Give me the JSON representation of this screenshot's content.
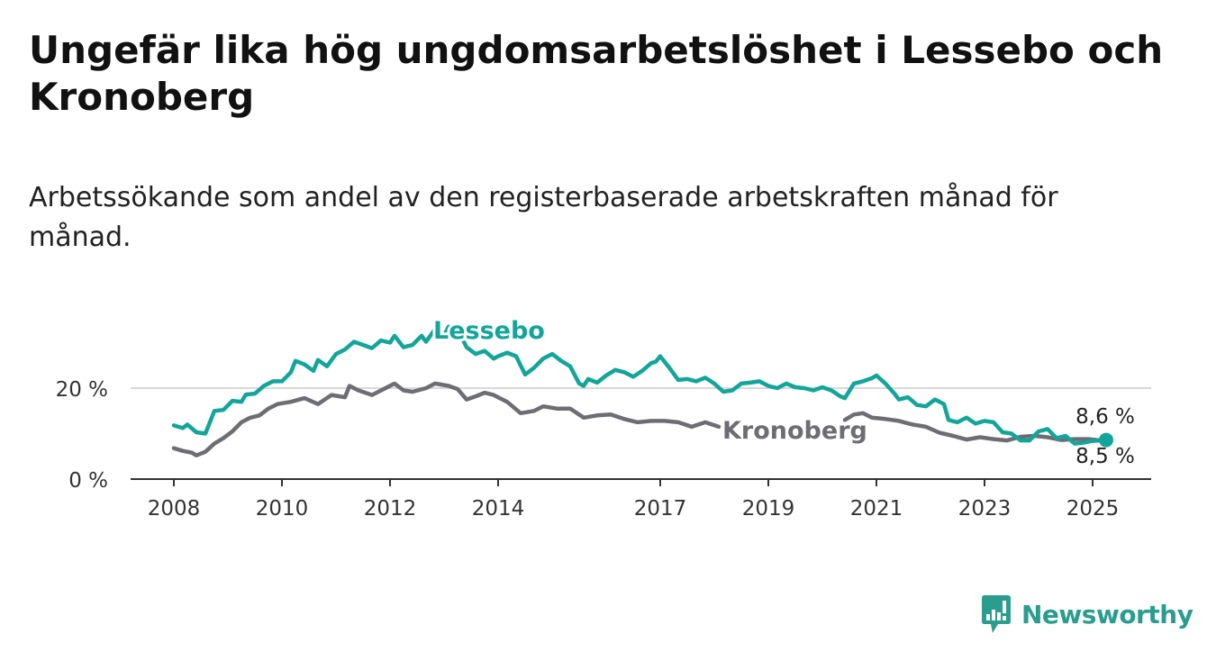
{
  "title": "Ungefär lika hög ungdomsarbetslöshet i Lessebo och Kronoberg",
  "subtitle": "Arbetssökande som andel av den registerbaserade arbetskraften månad för månad.",
  "brand": {
    "name": "Newsworthy",
    "icon": "newsworthy-logo-icon",
    "color": "#2a9d8f"
  },
  "chart_data": {
    "type": "line",
    "xlabel": "",
    "ylabel": "",
    "x_ticks": [
      "2008",
      "2010",
      "2012",
      "2014",
      "2017",
      "2019",
      "2021",
      "2023",
      "2025"
    ],
    "x_range": [
      "2008-01",
      "2025-04"
    ],
    "y_ticks": [
      "0 %",
      "20 %"
    ],
    "ylim": [
      0,
      40
    ],
    "grid": "horizontal",
    "end_labels": {
      "top": "8,6 %",
      "bottom": "8,5 %"
    },
    "series": [
      {
        "name": "Lessebo",
        "color": "#13a59a",
        "points": [
          [
            "2008-01",
            11.8
          ],
          [
            "2008-03",
            11.2
          ],
          [
            "2008-04",
            12.0
          ],
          [
            "2008-06",
            10.3
          ],
          [
            "2008-08",
            10.0
          ],
          [
            "2008-10",
            15.0
          ],
          [
            "2008-12",
            15.2
          ],
          [
            "2009-02",
            17.2
          ],
          [
            "2009-04",
            17.0
          ],
          [
            "2009-05",
            18.6
          ],
          [
            "2009-07",
            18.8
          ],
          [
            "2009-09",
            20.5
          ],
          [
            "2009-11",
            21.5
          ],
          [
            "2010-01",
            21.5
          ],
          [
            "2010-03",
            23.5
          ],
          [
            "2010-04",
            26.0
          ],
          [
            "2010-06",
            25.2
          ],
          [
            "2010-08",
            23.8
          ],
          [
            "2010-09",
            26.2
          ],
          [
            "2010-11",
            24.8
          ],
          [
            "2011-01",
            27.5
          ],
          [
            "2011-03",
            28.5
          ],
          [
            "2011-05",
            30.2
          ],
          [
            "2011-07",
            29.5
          ],
          [
            "2011-09",
            28.8
          ],
          [
            "2011-11",
            30.5
          ],
          [
            "2012-01",
            30.0
          ],
          [
            "2012-02",
            31.5
          ],
          [
            "2012-04",
            29.0
          ],
          [
            "2012-06",
            29.5
          ],
          [
            "2012-08",
            31.5
          ],
          [
            "2012-09",
            30.2
          ],
          [
            "2012-11",
            33.0
          ],
          [
            "2013-01",
            31.5
          ],
          [
            "2013-02",
            33.5
          ],
          [
            "2013-04",
            33.0
          ],
          [
            "2013-06",
            29.0
          ],
          [
            "2013-08",
            27.5
          ],
          [
            "2013-10",
            28.2
          ],
          [
            "2013-12",
            26.5
          ],
          [
            "2014-01",
            27.0
          ],
          [
            "2014-03",
            27.8
          ],
          [
            "2014-05",
            27.0
          ],
          [
            "2014-07",
            23.0
          ],
          [
            "2014-09",
            24.5
          ],
          [
            "2014-11",
            26.5
          ],
          [
            "2015-01",
            27.5
          ],
          [
            "2015-03",
            26.0
          ],
          [
            "2015-05",
            24.8
          ],
          [
            "2015-07",
            21.0
          ],
          [
            "2015-08",
            20.5
          ],
          [
            "2015-09",
            22.0
          ],
          [
            "2015-11",
            21.2
          ],
          [
            "2016-01",
            22.8
          ],
          [
            "2016-03",
            24.0
          ],
          [
            "2016-05",
            23.5
          ],
          [
            "2016-07",
            22.5
          ],
          [
            "2016-09",
            23.8
          ],
          [
            "2016-11",
            25.5
          ],
          [
            "2016-12",
            25.8
          ],
          [
            "2017-01",
            27.0
          ],
          [
            "2017-03",
            24.5
          ],
          [
            "2017-05",
            21.8
          ],
          [
            "2017-07",
            22.0
          ],
          [
            "2017-09",
            21.5
          ],
          [
            "2017-11",
            22.3
          ],
          [
            "2018-01",
            21.0
          ],
          [
            "2018-03",
            19.2
          ],
          [
            "2018-05",
            19.5
          ],
          [
            "2018-07",
            21.0
          ],
          [
            "2018-09",
            21.2
          ],
          [
            "2018-11",
            21.5
          ],
          [
            "2019-01",
            20.5
          ],
          [
            "2019-03",
            20.0
          ],
          [
            "2019-05",
            21.0
          ],
          [
            "2019-07",
            20.2
          ],
          [
            "2019-09",
            20.0
          ],
          [
            "2019-11",
            19.5
          ],
          [
            "2020-01",
            20.2
          ],
          [
            "2020-03",
            19.5
          ],
          [
            "2020-05",
            18.2
          ],
          [
            "2020-06",
            17.8
          ],
          [
            "2020-08",
            21.0
          ],
          [
            "2020-10",
            21.5
          ],
          [
            "2020-12",
            22.2
          ],
          [
            "2021-01",
            22.8
          ],
          [
            "2021-03",
            21.0
          ],
          [
            "2021-05",
            18.8
          ],
          [
            "2021-06",
            17.5
          ],
          [
            "2021-08",
            18.0
          ],
          [
            "2021-10",
            16.3
          ],
          [
            "2021-12",
            16.0
          ],
          [
            "2022-02",
            17.5
          ],
          [
            "2022-04",
            16.5
          ],
          [
            "2022-05",
            13.0
          ],
          [
            "2022-07",
            12.5
          ],
          [
            "2022-09",
            13.5
          ],
          [
            "2022-11",
            12.2
          ],
          [
            "2023-01",
            12.8
          ],
          [
            "2023-03",
            12.5
          ],
          [
            "2023-05",
            10.3
          ],
          [
            "2023-07",
            10.0
          ],
          [
            "2023-09",
            8.5
          ],
          [
            "2023-11",
            8.5
          ],
          [
            "2024-01",
            10.5
          ],
          [
            "2024-03",
            11.0
          ],
          [
            "2024-05",
            9.0
          ],
          [
            "2024-07",
            9.5
          ],
          [
            "2024-09",
            7.8
          ],
          [
            "2024-11",
            8.0
          ],
          [
            "2025-01",
            8.4
          ],
          [
            "2025-04",
            8.6
          ]
        ]
      },
      {
        "name": "Kronoberg",
        "color": "#6e6d74",
        "segments": [
          [
            [
              "2008-01",
              6.8
            ],
            [
              "2008-03",
              6.2
            ],
            [
              "2008-05",
              5.8
            ],
            [
              "2008-06",
              5.2
            ],
            [
              "2008-08",
              6.0
            ],
            [
              "2008-10",
              7.8
            ],
            [
              "2008-12",
              9.0
            ],
            [
              "2009-02",
              10.5
            ],
            [
              "2009-04",
              12.5
            ],
            [
              "2009-06",
              13.5
            ],
            [
              "2009-08",
              14.0
            ],
            [
              "2009-10",
              15.5
            ],
            [
              "2009-12",
              16.5
            ],
            [
              "2010-03",
              17.0
            ],
            [
              "2010-06",
              17.8
            ],
            [
              "2010-09",
              16.5
            ],
            [
              "2010-12",
              18.5
            ],
            [
              "2011-03",
              18.0
            ],
            [
              "2011-04",
              20.5
            ],
            [
              "2011-06",
              19.5
            ],
            [
              "2011-09",
              18.5
            ],
            [
              "2011-12",
              20.0
            ],
            [
              "2012-02",
              21.0
            ],
            [
              "2012-04",
              19.5
            ],
            [
              "2012-06",
              19.2
            ],
            [
              "2012-09",
              20.0
            ],
            [
              "2012-11",
              21.0
            ],
            [
              "2013-02",
              20.5
            ],
            [
              "2013-04",
              19.8
            ],
            [
              "2013-06",
              17.5
            ],
            [
              "2013-08",
              18.2
            ],
            [
              "2013-10",
              19.0
            ],
            [
              "2013-12",
              18.5
            ],
            [
              "2014-03",
              17.0
            ],
            [
              "2014-06",
              14.5
            ],
            [
              "2014-09",
              15.0
            ],
            [
              "2014-11",
              16.0
            ],
            [
              "2015-02",
              15.5
            ],
            [
              "2015-05",
              15.5
            ],
            [
              "2015-08",
              13.5
            ],
            [
              "2015-11",
              14.0
            ],
            [
              "2016-02",
              14.2
            ],
            [
              "2016-05",
              13.2
            ],
            [
              "2016-08",
              12.5
            ],
            [
              "2016-11",
              12.8
            ],
            [
              "2017-02",
              12.8
            ],
            [
              "2017-05",
              12.5
            ],
            [
              "2017-08",
              11.5
            ],
            [
              "2017-11",
              12.5
            ],
            [
              "2018-02",
              11.5
            ]
          ],
          [
            [
              "2020-06",
              13.0
            ],
            [
              "2020-08",
              14.2
            ],
            [
              "2020-10",
              14.5
            ],
            [
              "2020-12",
              13.5
            ],
            [
              "2021-03",
              13.2
            ],
            [
              "2021-06",
              12.8
            ],
            [
              "2021-09",
              12.0
            ],
            [
              "2021-12",
              11.5
            ],
            [
              "2022-03",
              10.2
            ],
            [
              "2022-06",
              9.5
            ],
            [
              "2022-09",
              8.7
            ],
            [
              "2022-12",
              9.2
            ],
            [
              "2023-03",
              8.8
            ],
            [
              "2023-06",
              8.5
            ],
            [
              "2023-09",
              9.3
            ],
            [
              "2023-12",
              9.5
            ],
            [
              "2024-03",
              9.2
            ],
            [
              "2024-06",
              8.6
            ],
            [
              "2024-09",
              8.8
            ],
            [
              "2024-12",
              8.8
            ],
            [
              "2025-02",
              8.6
            ],
            [
              "2025-04",
              8.5
            ]
          ]
        ]
      }
    ]
  }
}
